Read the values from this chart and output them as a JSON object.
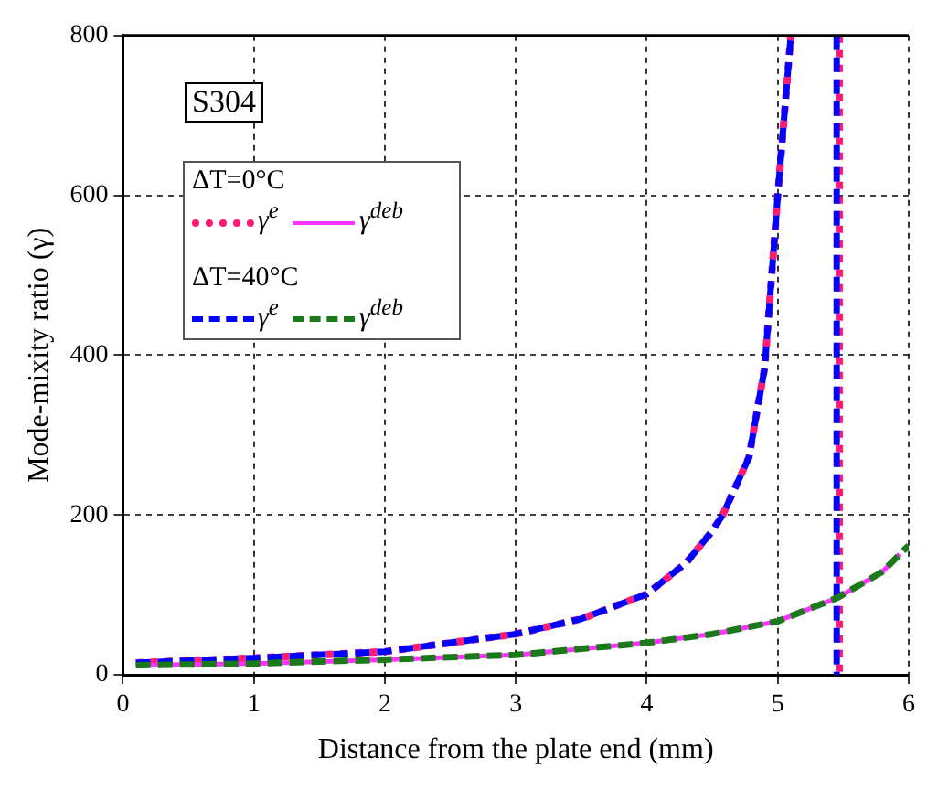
{
  "chart_data": {
    "type": "line",
    "xlabel": "Distance from the plate end (mm)",
    "ylabel": "Mode-mixity ratio (γ)",
    "annotations": [
      "S304",
      "ΔT=0°C",
      "ΔT=40°C"
    ],
    "xlim": [
      0,
      6
    ],
    "xticks": [
      0,
      1,
      2,
      3,
      4,
      5,
      6
    ],
    "ylim": [
      0,
      800
    ],
    "yticks": [
      0,
      200,
      400,
      600,
      800
    ],
    "grid": true,
    "legend": "top left",
    "marker": "none",
    "series": [
      {
        "name": "γ$^{e}$",
        "color": "#ff1a75",
        "line_style": "dotted",
        "x": [
          0.1,
          1,
          2,
          3,
          3.5,
          4,
          4.3,
          4.5,
          4.58,
          4.78,
          4.9,
          5.0,
          5.1,
          null,
          5.47,
          5.47
        ],
        "values": [
          15,
          21,
          29,
          51,
          70,
          101,
          140,
          180,
          200,
          272,
          384,
          600,
          800,
          null,
          800,
          0
        ]
      },
      {
        "name": "γ$^{deb}$",
        "color": "#ff33ff",
        "line_style": "solid",
        "x": [
          0.1,
          1,
          2,
          3,
          4,
          4.5,
          5,
          5.45,
          5.8,
          5.93
        ],
        "values": [
          12,
          14,
          19,
          25,
          40,
          51,
          67,
          96,
          129,
          151
        ]
      },
      {
        "name": "γ$^{e}$",
        "color": "#0000ff",
        "line_style": "dashed",
        "x": [
          0.1,
          1,
          2,
          3,
          3.5,
          4,
          4.3,
          4.5,
          4.58,
          4.78,
          4.9,
          5.0,
          5.1,
          null,
          5.45,
          5.45
        ],
        "values": [
          15,
          21,
          29,
          51,
          70,
          101,
          140,
          180,
          200,
          272,
          384,
          600,
          800,
          null,
          800,
          0
        ]
      },
      {
        "name": "γ$^{deb}$",
        "color": "#1a7a1a",
        "line_style": "dashed",
        "x": [
          0.1,
          1,
          2,
          3,
          4,
          4.5,
          5,
          5.45,
          5.8,
          6
        ],
        "values": [
          12,
          14,
          19,
          25,
          40,
          51,
          67,
          96,
          129,
          162
        ]
      }
    ]
  }
}
